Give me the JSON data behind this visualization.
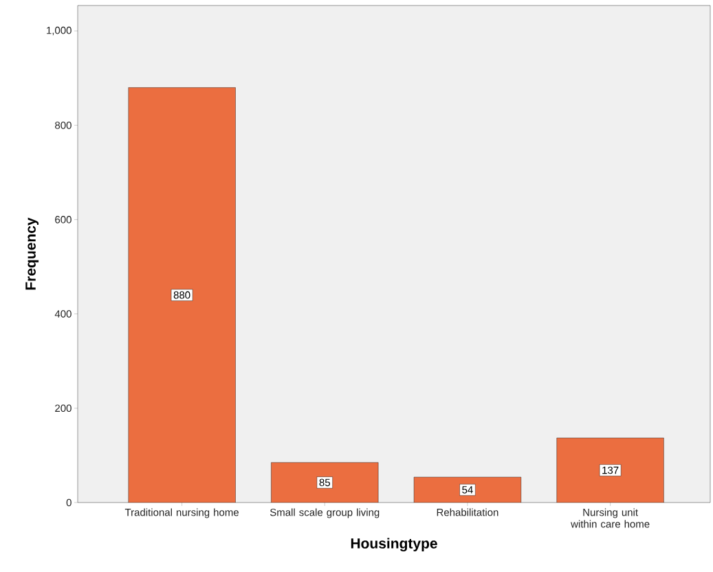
{
  "chart_data": {
    "type": "bar",
    "xlabel": "Housingtype",
    "ylabel": "Frequency",
    "categories": [
      "Traditional nursing home",
      "Small scale group living",
      "Rehabilitation",
      "Nursing unit within care home"
    ],
    "values": [
      880,
      85,
      54,
      137
    ],
    "color": "#eb6e40",
    "data_labels": true,
    "ylim": [
      0,
      1054
    ],
    "yticks": [
      0,
      200,
      400,
      600,
      800,
      {
        "value": 1000,
        "label": "1,000"
      }
    ],
    "grid": false
  }
}
